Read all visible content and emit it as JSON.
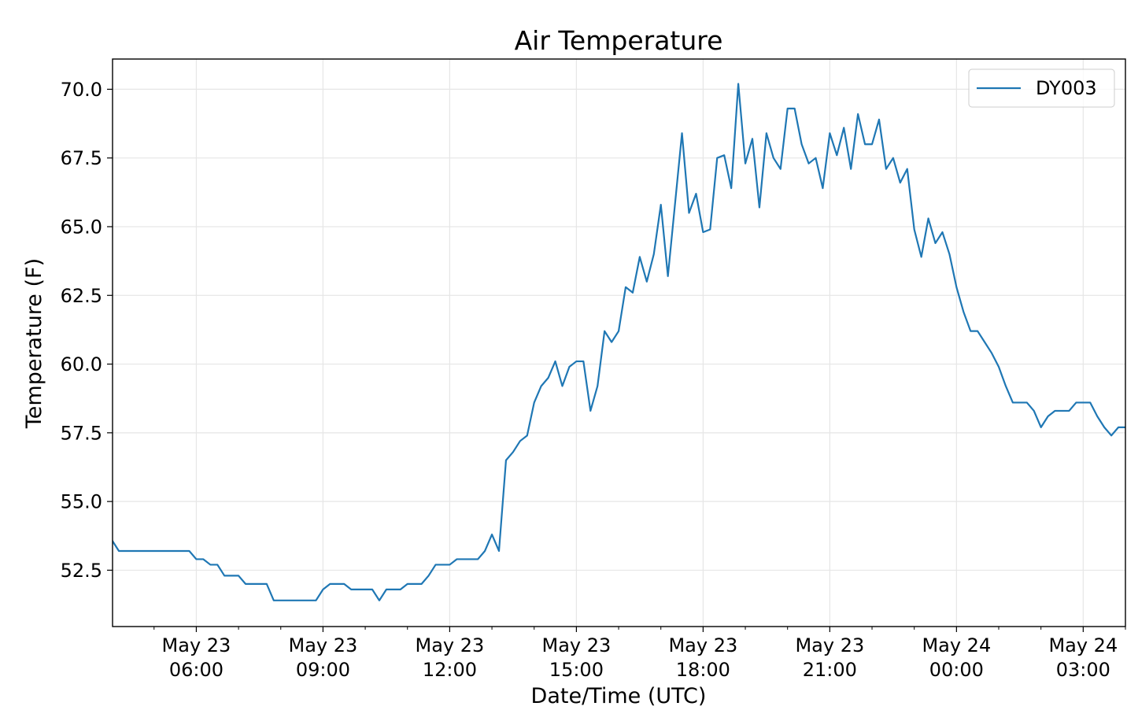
{
  "chart_data": {
    "type": "line",
    "title": "Air Temperature",
    "xlabel": "Date/Time (UTC)",
    "ylabel": "Temperature (F)",
    "xlim": [
      "2023-05-23T04:01:00Z",
      "2023-05-24T04:00:00Z"
    ],
    "ylim": [
      50.45,
      71.1
    ],
    "grid": true,
    "legend_position": "top-right",
    "colors": {
      "series": "#1f77b4",
      "grid": "#e6e6e6",
      "axes": "#000000",
      "legend_border": "#cccccc"
    },
    "y_ticks": [
      {
        "value": 52.5,
        "label": "52.5"
      },
      {
        "value": 55.0,
        "label": "55.0"
      },
      {
        "value": 57.5,
        "label": "57.5"
      },
      {
        "value": 60.0,
        "label": "60.0"
      },
      {
        "value": 62.5,
        "label": "62.5"
      },
      {
        "value": 65.0,
        "label": "65.0"
      },
      {
        "value": 67.5,
        "label": "67.5"
      },
      {
        "value": 70.0,
        "label": "70.0"
      }
    ],
    "x_ticks": [
      {
        "value": "2023-05-23T06:00:00Z",
        "line1": "May 23",
        "line2": "06:00"
      },
      {
        "value": "2023-05-23T09:00:00Z",
        "line1": "May 23",
        "line2": "09:00"
      },
      {
        "value": "2023-05-23T12:00:00Z",
        "line1": "May 23",
        "line2": "12:00"
      },
      {
        "value": "2023-05-23T15:00:00Z",
        "line1": "May 23",
        "line2": "15:00"
      },
      {
        "value": "2023-05-23T18:00:00Z",
        "line1": "May 23",
        "line2": "18:00"
      },
      {
        "value": "2023-05-23T21:00:00Z",
        "line1": "May 23",
        "line2": "21:00"
      },
      {
        "value": "2023-05-24T00:00:00Z",
        "line1": "May 24",
        "line2": "00:00"
      },
      {
        "value": "2023-05-24T03:00:00Z",
        "line1": "May 24",
        "line2": "03:00"
      }
    ],
    "series": [
      {
        "name": "DY003",
        "x": [
          "2023-05-23T04:00:00Z",
          "2023-05-23T04:10:00Z",
          "2023-05-23T04:20:00Z",
          "2023-05-23T04:30:00Z",
          "2023-05-23T04:40:00Z",
          "2023-05-23T04:50:00Z",
          "2023-05-23T05:00:00Z",
          "2023-05-23T05:10:00Z",
          "2023-05-23T05:20:00Z",
          "2023-05-23T05:30:00Z",
          "2023-05-23T05:40:00Z",
          "2023-05-23T05:50:00Z",
          "2023-05-23T06:00:00Z",
          "2023-05-23T06:10:00Z",
          "2023-05-23T06:20:00Z",
          "2023-05-23T06:30:00Z",
          "2023-05-23T06:40:00Z",
          "2023-05-23T06:50:00Z",
          "2023-05-23T07:00:00Z",
          "2023-05-23T07:10:00Z",
          "2023-05-23T07:20:00Z",
          "2023-05-23T07:30:00Z",
          "2023-05-23T07:40:00Z",
          "2023-05-23T07:50:00Z",
          "2023-05-23T08:00:00Z",
          "2023-05-23T08:10:00Z",
          "2023-05-23T08:20:00Z",
          "2023-05-23T08:30:00Z",
          "2023-05-23T08:40:00Z",
          "2023-05-23T08:50:00Z",
          "2023-05-23T09:00:00Z",
          "2023-05-23T09:10:00Z",
          "2023-05-23T09:20:00Z",
          "2023-05-23T09:30:00Z",
          "2023-05-23T09:40:00Z",
          "2023-05-23T09:50:00Z",
          "2023-05-23T10:00:00Z",
          "2023-05-23T10:10:00Z",
          "2023-05-23T10:20:00Z",
          "2023-05-23T10:30:00Z",
          "2023-05-23T10:40:00Z",
          "2023-05-23T10:50:00Z",
          "2023-05-23T11:00:00Z",
          "2023-05-23T11:10:00Z",
          "2023-05-23T11:20:00Z",
          "2023-05-23T11:30:00Z",
          "2023-05-23T11:40:00Z",
          "2023-05-23T11:50:00Z",
          "2023-05-23T12:00:00Z",
          "2023-05-23T12:10:00Z",
          "2023-05-23T12:20:00Z",
          "2023-05-23T12:30:00Z",
          "2023-05-23T12:40:00Z",
          "2023-05-23T12:50:00Z",
          "2023-05-23T13:00:00Z",
          "2023-05-23T13:10:00Z",
          "2023-05-23T13:20:00Z",
          "2023-05-23T13:30:00Z",
          "2023-05-23T13:40:00Z",
          "2023-05-23T13:50:00Z",
          "2023-05-23T14:00:00Z",
          "2023-05-23T14:10:00Z",
          "2023-05-23T14:20:00Z",
          "2023-05-23T14:30:00Z",
          "2023-05-23T14:40:00Z",
          "2023-05-23T14:50:00Z",
          "2023-05-23T15:00:00Z",
          "2023-05-23T15:10:00Z",
          "2023-05-23T15:20:00Z",
          "2023-05-23T15:30:00Z",
          "2023-05-23T15:40:00Z",
          "2023-05-23T15:50:00Z",
          "2023-05-23T16:00:00Z",
          "2023-05-23T16:10:00Z",
          "2023-05-23T16:20:00Z",
          "2023-05-23T16:30:00Z",
          "2023-05-23T16:40:00Z",
          "2023-05-23T16:50:00Z",
          "2023-05-23T17:00:00Z",
          "2023-05-23T17:10:00Z",
          "2023-05-23T17:20:00Z",
          "2023-05-23T17:30:00Z",
          "2023-05-23T17:40:00Z",
          "2023-05-23T17:50:00Z",
          "2023-05-23T18:00:00Z",
          "2023-05-23T18:10:00Z",
          "2023-05-23T18:20:00Z",
          "2023-05-23T18:30:00Z",
          "2023-05-23T18:40:00Z",
          "2023-05-23T18:50:00Z",
          "2023-05-23T19:00:00Z",
          "2023-05-23T19:10:00Z",
          "2023-05-23T19:20:00Z",
          "2023-05-23T19:30:00Z",
          "2023-05-23T19:40:00Z",
          "2023-05-23T19:50:00Z",
          "2023-05-23T20:00:00Z",
          "2023-05-23T20:10:00Z",
          "2023-05-23T20:20:00Z",
          "2023-05-23T20:30:00Z",
          "2023-05-23T20:40:00Z",
          "2023-05-23T20:50:00Z",
          "2023-05-23T21:00:00Z",
          "2023-05-23T21:10:00Z",
          "2023-05-23T21:20:00Z",
          "2023-05-23T21:30:00Z",
          "2023-05-23T21:40:00Z",
          "2023-05-23T21:50:00Z",
          "2023-05-23T22:00:00Z",
          "2023-05-23T22:10:00Z",
          "2023-05-23T22:20:00Z",
          "2023-05-23T22:30:00Z",
          "2023-05-23T22:40:00Z",
          "2023-05-23T22:50:00Z",
          "2023-05-23T23:00:00Z",
          "2023-05-23T23:10:00Z",
          "2023-05-23T23:20:00Z",
          "2023-05-23T23:30:00Z",
          "2023-05-23T23:40:00Z",
          "2023-05-23T23:50:00Z",
          "2023-05-24T00:00:00Z",
          "2023-05-24T00:10:00Z",
          "2023-05-24T00:20:00Z",
          "2023-05-24T00:30:00Z",
          "2023-05-24T00:40:00Z",
          "2023-05-24T00:50:00Z",
          "2023-05-24T01:00:00Z",
          "2023-05-24T01:10:00Z",
          "2023-05-24T01:20:00Z",
          "2023-05-24T01:30:00Z",
          "2023-05-24T01:40:00Z",
          "2023-05-24T01:50:00Z",
          "2023-05-24T02:00:00Z",
          "2023-05-24T02:10:00Z",
          "2023-05-24T02:20:00Z",
          "2023-05-24T02:30:00Z",
          "2023-05-24T02:40:00Z",
          "2023-05-24T02:50:00Z",
          "2023-05-24T03:00:00Z",
          "2023-05-24T03:10:00Z",
          "2023-05-24T03:20:00Z",
          "2023-05-24T03:30:00Z",
          "2023-05-24T03:40:00Z",
          "2023-05-24T03:50:00Z",
          "2023-05-24T04:00:00Z"
        ],
        "values": [
          53.6,
          53.2,
          53.2,
          53.2,
          53.2,
          53.2,
          53.2,
          53.2,
          53.2,
          53.2,
          53.2,
          53.2,
          52.9,
          52.9,
          52.7,
          52.7,
          52.3,
          52.3,
          52.3,
          52.0,
          52.0,
          52.0,
          52.0,
          51.4,
          51.4,
          51.4,
          51.4,
          51.4,
          51.4,
          51.4,
          51.8,
          52.0,
          52.0,
          52.0,
          51.8,
          51.8,
          51.8,
          51.8,
          51.4,
          51.8,
          51.8,
          51.8,
          52.0,
          52.0,
          52.0,
          52.3,
          52.7,
          52.7,
          52.7,
          52.9,
          52.9,
          52.9,
          52.9,
          53.2,
          53.8,
          53.2,
          56.5,
          56.8,
          57.2,
          57.4,
          58.6,
          59.2,
          59.5,
          60.1,
          59.2,
          59.9,
          60.1,
          60.1,
          58.3,
          59.2,
          61.2,
          60.8,
          61.2,
          62.8,
          62.6,
          63.9,
          63.0,
          64.0,
          65.8,
          63.2,
          65.8,
          68.4,
          65.5,
          66.2,
          64.8,
          64.9,
          67.5,
          67.6,
          66.4,
          70.2,
          67.3,
          68.2,
          65.7,
          68.4,
          67.5,
          67.1,
          69.3,
          69.3,
          68.0,
          67.3,
          67.5,
          66.4,
          68.4,
          67.6,
          68.6,
          67.1,
          69.1,
          68.0,
          68.0,
          68.9,
          67.1,
          67.5,
          66.6,
          67.1,
          64.9,
          63.9,
          65.3,
          64.4,
          64.8,
          64.0,
          62.8,
          61.9,
          61.2,
          61.2,
          60.8,
          60.4,
          59.9,
          59.2,
          58.6,
          58.6,
          58.6,
          58.3,
          57.7,
          58.1,
          58.3,
          58.3,
          58.3,
          58.6,
          58.6,
          58.6,
          58.1,
          57.7,
          57.4,
          57.7,
          57.7
        ]
      }
    ]
  }
}
